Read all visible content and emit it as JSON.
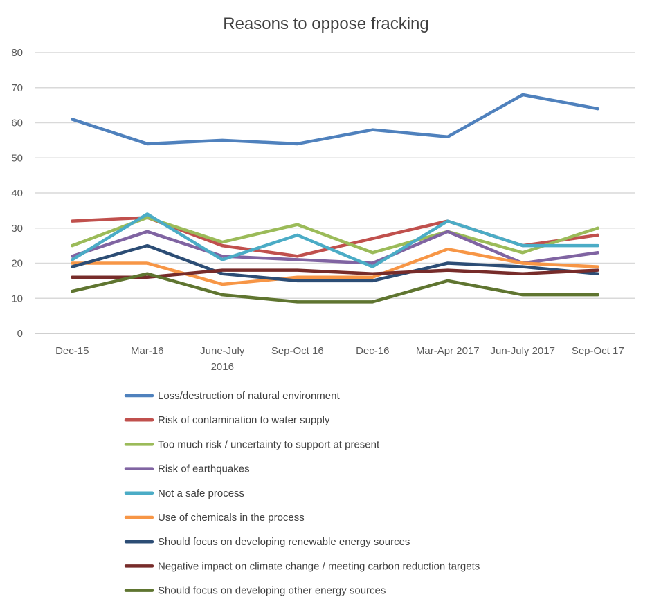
{
  "chart_data": {
    "type": "line",
    "title": "Reasons to oppose fracking",
    "xlabel": "",
    "ylabel": "",
    "ylim": [
      0,
      80
    ],
    "yticks": [
      0,
      10,
      20,
      30,
      40,
      50,
      60,
      70,
      80
    ],
    "grid": true,
    "legend_placement": "bottom",
    "categories": [
      "Dec-15",
      "Mar-16",
      "June-July 2016",
      "Sep-Oct 16",
      "Dec-16",
      "Mar-Apr 2017",
      "Jun-July 2017",
      "Sep-Oct 17"
    ],
    "series": [
      {
        "name": "Loss/destruction of natural environment",
        "color": "#4f81bd",
        "values": [
          61,
          54,
          55,
          54,
          58,
          56,
          68,
          64
        ]
      },
      {
        "name": "Risk of contamination to water supply",
        "color": "#c0504d",
        "values": [
          32,
          33,
          25,
          22,
          27,
          32,
          25,
          28
        ]
      },
      {
        "name": "Too much risk / uncertainty to support at present",
        "color": "#9bbb59",
        "values": [
          25,
          33,
          26,
          31,
          23,
          29,
          23,
          30
        ]
      },
      {
        "name": "Risk of earthquakes",
        "color": "#8064a2",
        "values": [
          22,
          29,
          22,
          21,
          20,
          29,
          20,
          23
        ]
      },
      {
        "name": "Not a safe process",
        "color": "#4bacc6",
        "values": [
          21,
          34,
          21,
          28,
          19,
          32,
          25,
          25
        ]
      },
      {
        "name": "Use of chemicals in the process",
        "color": "#f79646",
        "values": [
          20,
          20,
          14,
          16,
          16,
          24,
          20,
          19
        ]
      },
      {
        "name": "Should focus on developing renewable energy sources",
        "color": "#2c4d75",
        "values": [
          19,
          25,
          17,
          15,
          15,
          20,
          19,
          17
        ]
      },
      {
        "name": "Negative impact on climate change / meeting carbon reduction targets",
        "color": "#772c2a",
        "values": [
          16,
          16,
          18,
          18,
          17,
          18,
          17,
          18
        ]
      },
      {
        "name": "Should focus on developing other energy sources",
        "color": "#5f7530",
        "values": [
          12,
          17,
          11,
          9,
          9,
          15,
          11,
          11
        ]
      }
    ]
  }
}
